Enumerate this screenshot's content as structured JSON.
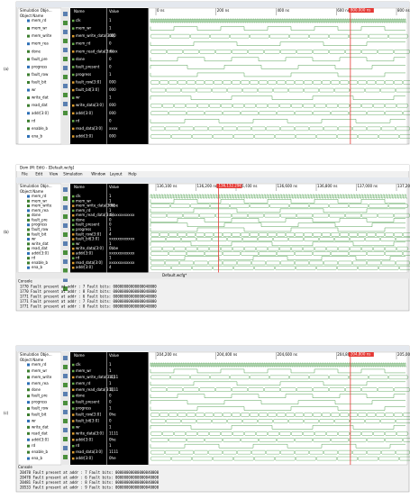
{
  "panels": [
    {
      "label": "(a)",
      "tree_title": "Simulation Obje...",
      "tree_header": "Object Name",
      "tree_items": [
        "mem_rd",
        "mem_wr",
        "mem_write",
        "mem_rea",
        "done",
        "fault_pre",
        "progress",
        "fault_row",
        "fault_bit",
        "wr",
        "write_dat",
        "read_dat",
        "addr[3:0]",
        "rd",
        "enable_b",
        "ena_b"
      ],
      "name_header": "Name",
      "value_header": "Value",
      "cursor": "800.000 ns",
      "ticks": [
        "0 ns",
        "200 ns",
        "400 ns",
        "600 ns",
        "800 ns"
      ],
      "signals": [
        {
          "name": "clk",
          "value": "1"
        },
        {
          "name": "mem_wr",
          "value": "1"
        },
        {
          "name": "mem_write_data[3:0]",
          "value": "000"
        },
        {
          "name": "mem_rd",
          "value": "0"
        },
        {
          "name": "mem_read_data[3:0]",
          "value": "xxxx"
        },
        {
          "name": "done",
          "value": "0"
        },
        {
          "name": "fault_present",
          "value": "0"
        },
        {
          "name": "progress",
          "value": "1"
        },
        {
          "name": "fault_row[3:0]",
          "value": "000"
        },
        {
          "name": "fault_bit[3:0]",
          "value": "000"
        },
        {
          "name": "wr",
          "value": "1"
        },
        {
          "name": "write_data[3:0]",
          "value": "000"
        },
        {
          "name": "addr[3:0]",
          "value": "000"
        },
        {
          "name": "rd",
          "value": "0"
        },
        {
          "name": "read_data[3:0]",
          "value": "xxxx"
        },
        {
          "name": "addr[3:0]",
          "value": "000"
        }
      ]
    },
    {
      "label": "(b)",
      "window_title": "Dom (M: Edit) - [Default.wcfg]",
      "menu": [
        "File",
        "Edit",
        "View",
        "Simulation",
        "Window",
        "Layout",
        "Help"
      ],
      "tree_title": "Simulation Obje...",
      "tree_header": "Object Name",
      "tree_items": [
        "mem_rd",
        "mem_wr",
        "mem_write",
        "mem_rea",
        "done",
        "fault_pre",
        "progress",
        "fault_row",
        "fault_bit",
        "wr",
        "write_dat",
        "read_dat",
        "addr[3:0]",
        "rd",
        "enable_b",
        "ena_b"
      ],
      "name_header": "Name",
      "value_header": "Value",
      "cursor": "136,132.296 ns",
      "ticks": [
        "136,100 ns",
        "136,200 ns",
        "136,400 ns",
        "136,600 ns",
        "136,800 ns",
        "137,000 ns",
        "137,200 ns"
      ],
      "signals": [
        {
          "name": "clk",
          "value": "1"
        },
        {
          "name": "mem_wr",
          "value": "1"
        },
        {
          "name": "mem_write_data[3:0]",
          "value": "0bbe"
        },
        {
          "name": "mem_rd",
          "value": "1"
        },
        {
          "name": "mem_read_data[3:0]",
          "value": "xxxxxxxxxxxx"
        },
        {
          "name": "done",
          "value": "0"
        },
        {
          "name": "fault_present",
          "value": "0"
        },
        {
          "name": "progress",
          "value": "1"
        },
        {
          "name": "fault_row[3:0]",
          "value": "4"
        },
        {
          "name": "fault_bit[3:0]",
          "value": "xxxxxxxxxxxx"
        },
        {
          "name": "wr",
          "value": "1"
        },
        {
          "name": "write_data[3:0]",
          "value": "0bbe"
        },
        {
          "name": "addr[3:0]",
          "value": "xxxxxxxxxxxx"
        },
        {
          "name": "rd",
          "value": "1"
        },
        {
          "name": "read_data[3:0]",
          "value": "xxxxxxxxxxxx"
        },
        {
          "name": "addr[3:0]",
          "value": "4"
        }
      ],
      "tab": "Default.wcfg*",
      "console_title": "Console",
      "console": [
        "1770 Fault present at addr : 7  Fault bits: 00000000000000040000",
        "1770 Fault present at addr : 8  Fault bits: 00000000000000040000",
        "1771 Fault present at addr : 6  Fault bits: 00000000000000040000",
        "1771 Fault present at addr : 7  Fault bits: 00000000000000040000",
        "1771 Fault present at addr : 8  Fault bits: 00000000000000040000"
      ]
    },
    {
      "label": "(c)",
      "tree_title": "Simulation Obje...",
      "tree_header": "Object Name",
      "tree_items": [
        "mem_rd",
        "mem_wr",
        "mem_write",
        "mem_rea",
        "done",
        "fault_pre",
        "progress",
        "fault_row",
        "fault_bit",
        "wr",
        "write_dat",
        "read_dat",
        "addr[3:0]",
        "rd",
        "enable_b",
        "ena_b"
      ],
      "name_header": "Name",
      "value_header": "Value",
      "cursor": "204,800 ns",
      "ticks": [
        "204,200 ns",
        "204,400 ns",
        "204,600 ns",
        "204,800 ns",
        "205,000 ns"
      ],
      "signals": [
        {
          "name": "clk",
          "value": "1"
        },
        {
          "name": "mem_wr",
          "value": "1"
        },
        {
          "name": "mem_write_data[3:0]",
          "value": "1111"
        },
        {
          "name": "mem_rd",
          "value": "1"
        },
        {
          "name": "mem_read_data[3:0]",
          "value": "1111"
        },
        {
          "name": "done",
          "value": "0"
        },
        {
          "name": "fault_present",
          "value": "0"
        },
        {
          "name": "progress",
          "value": "1"
        },
        {
          "name": "fault_row[3:0]",
          "value": "0he"
        },
        {
          "name": "fault_bit[3:0]",
          "value": "0"
        },
        {
          "name": "wr",
          "value": "1"
        },
        {
          "name": "write_data[3:0]",
          "value": "1111"
        },
        {
          "name": "addr[3:0]",
          "value": "0he"
        },
        {
          "name": "rd",
          "value": "1"
        },
        {
          "name": "read_data[3:0]",
          "value": "1111"
        },
        {
          "name": "addr[3:0]",
          "value": "0he"
        }
      ],
      "console_title": "Console",
      "console": [
        "20470 Fault present at addr : 7  Fault bits: 00000000000000040000",
        "20470 Fault present at addr : 6  Fault bits: 00000000000000040000",
        "20481 Fault present at addr : 8  Fault bits: 00000000000000040000",
        "20533 Fault present at addr : 9  Fault bits: 00000000000000040000"
      ]
    }
  ]
}
